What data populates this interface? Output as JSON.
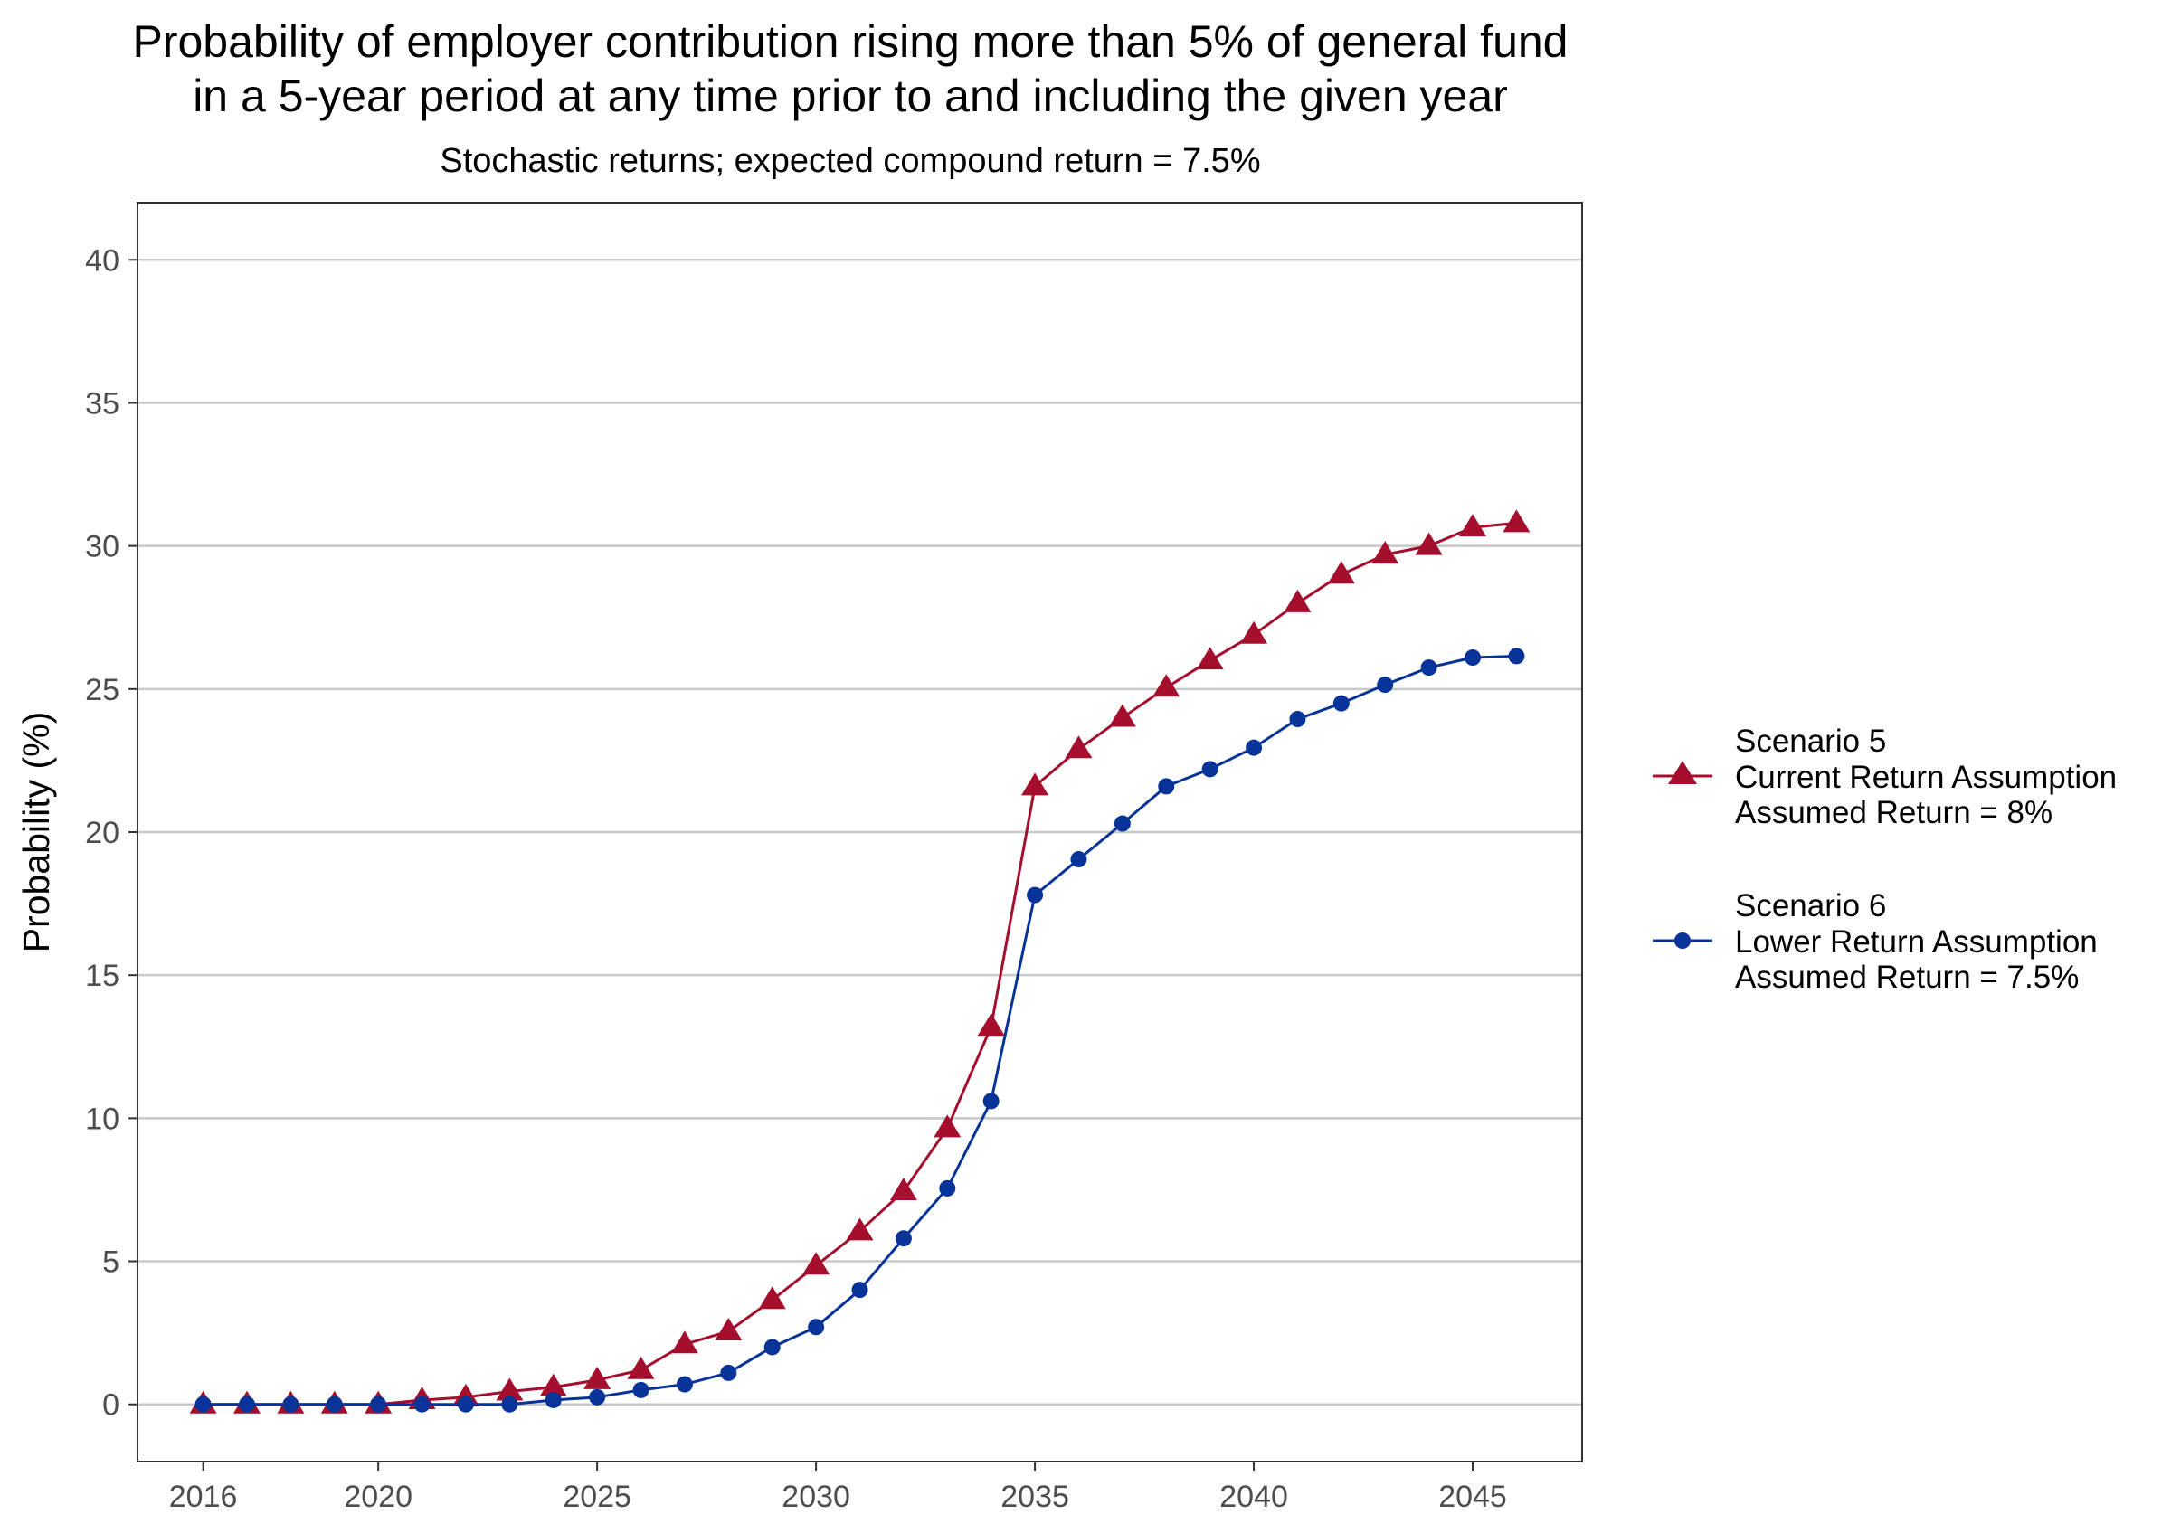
{
  "chart_data": {
    "type": "line",
    "title_lines": [
      "Probability of employer contribution rising more than 5% of general fund",
      "in a 5-year period at any time prior to and including the given year"
    ],
    "subtitle": "Stochastic returns; expected compound return = 7.5%",
    "xlabel": "",
    "ylabel": "Probability (%)",
    "xlim": [
      2014.5,
      2047.5
    ],
    "ylim": [
      -2,
      42
    ],
    "x_ticks": [
      2016,
      2020,
      2025,
      2030,
      2035,
      2040,
      2045
    ],
    "y_ticks": [
      0,
      5,
      10,
      15,
      20,
      25,
      30,
      35,
      40
    ],
    "grid": "horizontal major gridlines",
    "legend_position": "right",
    "x": [
      2016,
      2017,
      2018,
      2019,
      2020,
      2021,
      2022,
      2023,
      2024,
      2025,
      2026,
      2027,
      2028,
      2029,
      2030,
      2031,
      2032,
      2033,
      2034,
      2035,
      2036,
      2037,
      2038,
      2039,
      2040,
      2041,
      2042,
      2043,
      2044,
      2045,
      2046
    ],
    "series": [
      {
        "name": "Scenario 5",
        "label_lines": [
          "Scenario 5",
          "Current Return Assumption",
          "Assumed Return = 8%"
        ],
        "color": "#a50f2d",
        "marker": "triangle",
        "values": [
          0,
          0,
          0,
          0,
          0,
          0.15,
          0.25,
          0.45,
          0.6,
          0.85,
          1.2,
          2.1,
          2.55,
          3.65,
          4.85,
          6.05,
          7.45,
          9.65,
          13.2,
          21.6,
          22.9,
          24.0,
          25.05,
          26.0,
          26.9,
          28.0,
          29.0,
          29.7,
          30.0,
          30.65,
          30.8
        ]
      },
      {
        "name": "Scenario 6",
        "label_lines": [
          "Scenario 6",
          "Lower Return Assumption",
          "Assumed Return = 7.5%"
        ],
        "color": "#08349a",
        "marker": "circle",
        "values": [
          0,
          0,
          0,
          0,
          0,
          0,
          0,
          0,
          0.15,
          0.25,
          0.5,
          0.7,
          1.1,
          2.0,
          2.7,
          4.0,
          5.8,
          7.55,
          10.6,
          17.8,
          19.05,
          20.3,
          21.6,
          22.2,
          22.95,
          23.95,
          24.5,
          25.15,
          25.75,
          26.1,
          26.15
        ]
      }
    ]
  }
}
